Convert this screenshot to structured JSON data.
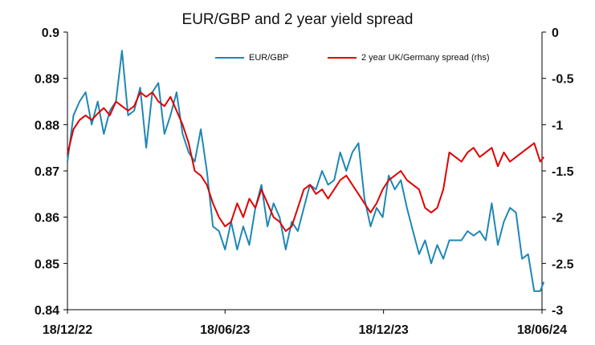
{
  "chart_data": {
    "type": "line",
    "title": "EUR/GBP and 2 year yield spread",
    "x_ticks": [
      "18/12/22",
      "18/06/23",
      "18/12/23",
      "18/06/24"
    ],
    "y_left": {
      "min": 0.84,
      "max": 0.9,
      "ticks": [
        "0.84",
        "0.85",
        "0.86",
        "0.87",
        "0.88",
        "0.89",
        "0.9"
      ]
    },
    "y_right": {
      "min": -3,
      "max": 0,
      "ticks": [
        "-3",
        "-2.5",
        "-2",
        "-1.5",
        "-1",
        "-0.5",
        "0"
      ]
    },
    "grid": false,
    "legend_placement": "top",
    "series": [
      {
        "name": "EUR/GBP",
        "axis": "left",
        "color": "#1f87b5",
        "points": [
          [
            "2022-12-18",
            0.872
          ],
          [
            "2022-12-25",
            0.882
          ],
          [
            "2023-01-01",
            0.885
          ],
          [
            "2023-01-08",
            0.887
          ],
          [
            "2023-01-15",
            0.88
          ],
          [
            "2023-01-22",
            0.885
          ],
          [
            "2023-01-29",
            0.878
          ],
          [
            "2023-02-05",
            0.883
          ],
          [
            "2023-02-12",
            0.885
          ],
          [
            "2023-02-19",
            0.896
          ],
          [
            "2023-02-26",
            0.882
          ],
          [
            "2023-03-05",
            0.883
          ],
          [
            "2023-03-12",
            0.888
          ],
          [
            "2023-03-19",
            0.875
          ],
          [
            "2023-03-26",
            0.887
          ],
          [
            "2023-04-02",
            0.889
          ],
          [
            "2023-04-09",
            0.878
          ],
          [
            "2023-04-16",
            0.882
          ],
          [
            "2023-04-23",
            0.887
          ],
          [
            "2023-04-30",
            0.878
          ],
          [
            "2023-05-07",
            0.874
          ],
          [
            "2023-05-14",
            0.872
          ],
          [
            "2023-05-21",
            0.879
          ],
          [
            "2023-05-28",
            0.87
          ],
          [
            "2023-06-04",
            0.858
          ],
          [
            "2023-06-11",
            0.857
          ],
          [
            "2023-06-18",
            0.853
          ],
          [
            "2023-06-25",
            0.859
          ],
          [
            "2023-07-02",
            0.853
          ],
          [
            "2023-07-09",
            0.858
          ],
          [
            "2023-07-16",
            0.854
          ],
          [
            "2023-07-23",
            0.862
          ],
          [
            "2023-07-30",
            0.867
          ],
          [
            "2023-08-06",
            0.858
          ],
          [
            "2023-08-13",
            0.863
          ],
          [
            "2023-08-20",
            0.86
          ],
          [
            "2023-08-27",
            0.853
          ],
          [
            "2023-09-03",
            0.859
          ],
          [
            "2023-09-10",
            0.857
          ],
          [
            "2023-09-17",
            0.862
          ],
          [
            "2023-09-24",
            0.867
          ],
          [
            "2023-10-01",
            0.866
          ],
          [
            "2023-10-08",
            0.87
          ],
          [
            "2023-10-15",
            0.867
          ],
          [
            "2023-10-22",
            0.868
          ],
          [
            "2023-10-29",
            0.874
          ],
          [
            "2023-11-05",
            0.87
          ],
          [
            "2023-11-12",
            0.874
          ],
          [
            "2023-11-19",
            0.876
          ],
          [
            "2023-11-26",
            0.864
          ],
          [
            "2023-12-03",
            0.858
          ],
          [
            "2023-12-10",
            0.862
          ],
          [
            "2023-12-17",
            0.86
          ],
          [
            "2023-12-24",
            0.869
          ],
          [
            "2023-12-31",
            0.866
          ],
          [
            "2024-01-07",
            0.868
          ],
          [
            "2024-01-14",
            0.862
          ],
          [
            "2024-01-21",
            0.857
          ],
          [
            "2024-01-28",
            0.852
          ],
          [
            "2024-02-04",
            0.855
          ],
          [
            "2024-02-11",
            0.85
          ],
          [
            "2024-02-18",
            0.854
          ],
          [
            "2024-02-25",
            0.851
          ],
          [
            "2024-03-03",
            0.855
          ],
          [
            "2024-03-10",
            0.855
          ],
          [
            "2024-03-17",
            0.855
          ],
          [
            "2024-03-24",
            0.857
          ],
          [
            "2024-03-31",
            0.856
          ],
          [
            "2024-04-07",
            0.857
          ],
          [
            "2024-04-14",
            0.855
          ],
          [
            "2024-04-21",
            0.863
          ],
          [
            "2024-04-28",
            0.854
          ],
          [
            "2024-05-05",
            0.859
          ],
          [
            "2024-05-12",
            0.862
          ],
          [
            "2024-05-19",
            0.861
          ],
          [
            "2024-05-26",
            0.851
          ],
          [
            "2024-06-02",
            0.852
          ],
          [
            "2024-06-09",
            0.844
          ],
          [
            "2024-06-16",
            0.844
          ],
          [
            "2024-06-20",
            0.846
          ]
        ]
      },
      {
        "name": "2 year UK/Germany spread (rhs)",
        "axis": "right",
        "color": "#e00000",
        "points": [
          [
            "2022-12-18",
            -1.32
          ],
          [
            "2022-12-25",
            -1.05
          ],
          [
            "2023-01-01",
            -0.95
          ],
          [
            "2023-01-08",
            -0.9
          ],
          [
            "2023-01-15",
            -0.95
          ],
          [
            "2023-01-22",
            -0.88
          ],
          [
            "2023-01-29",
            -0.82
          ],
          [
            "2023-02-05",
            -0.9
          ],
          [
            "2023-02-12",
            -0.75
          ],
          [
            "2023-02-19",
            -0.8
          ],
          [
            "2023-02-26",
            -0.85
          ],
          [
            "2023-03-05",
            -0.8
          ],
          [
            "2023-03-12",
            -0.65
          ],
          [
            "2023-03-19",
            -0.7
          ],
          [
            "2023-03-26",
            -0.65
          ],
          [
            "2023-04-02",
            -0.75
          ],
          [
            "2023-04-09",
            -0.8
          ],
          [
            "2023-04-16",
            -0.7
          ],
          [
            "2023-04-23",
            -0.85
          ],
          [
            "2023-04-30",
            -1.0
          ],
          [
            "2023-05-07",
            -1.2
          ],
          [
            "2023-05-14",
            -1.5
          ],
          [
            "2023-05-21",
            -1.55
          ],
          [
            "2023-05-28",
            -1.65
          ],
          [
            "2023-06-04",
            -1.85
          ],
          [
            "2023-06-11",
            -2.0
          ],
          [
            "2023-06-18",
            -2.1
          ],
          [
            "2023-06-25",
            -2.05
          ],
          [
            "2023-07-02",
            -1.85
          ],
          [
            "2023-07-09",
            -2.0
          ],
          [
            "2023-07-16",
            -1.8
          ],
          [
            "2023-07-23",
            -1.9
          ],
          [
            "2023-07-30",
            -1.7
          ],
          [
            "2023-08-06",
            -1.85
          ],
          [
            "2023-08-13",
            -2.0
          ],
          [
            "2023-08-20",
            -2.05
          ],
          [
            "2023-08-27",
            -2.15
          ],
          [
            "2023-09-03",
            -2.1
          ],
          [
            "2023-09-10",
            -1.9
          ],
          [
            "2023-09-17",
            -1.7
          ],
          [
            "2023-09-24",
            -1.65
          ],
          [
            "2023-10-01",
            -1.75
          ],
          [
            "2023-10-08",
            -1.7
          ],
          [
            "2023-10-15",
            -1.8
          ],
          [
            "2023-10-22",
            -1.7
          ],
          [
            "2023-10-29",
            -1.6
          ],
          [
            "2023-11-05",
            -1.55
          ],
          [
            "2023-11-12",
            -1.65
          ],
          [
            "2023-11-19",
            -1.75
          ],
          [
            "2023-11-26",
            -1.85
          ],
          [
            "2023-12-03",
            -1.95
          ],
          [
            "2023-12-10",
            -1.85
          ],
          [
            "2023-12-17",
            -1.7
          ],
          [
            "2023-12-24",
            -1.6
          ],
          [
            "2023-12-31",
            -1.55
          ],
          [
            "2024-01-07",
            -1.5
          ],
          [
            "2024-01-14",
            -1.6
          ],
          [
            "2024-01-21",
            -1.65
          ],
          [
            "2024-01-28",
            -1.7
          ],
          [
            "2024-02-04",
            -1.9
          ],
          [
            "2024-02-11",
            -1.95
          ],
          [
            "2024-02-18",
            -1.9
          ],
          [
            "2024-02-25",
            -1.7
          ],
          [
            "2024-03-03",
            -1.3
          ],
          [
            "2024-03-10",
            -1.35
          ],
          [
            "2024-03-17",
            -1.4
          ],
          [
            "2024-03-24",
            -1.3
          ],
          [
            "2024-03-31",
            -1.25
          ],
          [
            "2024-04-07",
            -1.35
          ],
          [
            "2024-04-14",
            -1.3
          ],
          [
            "2024-04-21",
            -1.25
          ],
          [
            "2024-04-28",
            -1.45
          ],
          [
            "2024-05-05",
            -1.3
          ],
          [
            "2024-05-12",
            -1.4
          ],
          [
            "2024-05-19",
            -1.35
          ],
          [
            "2024-05-26",
            -1.3
          ],
          [
            "2024-06-02",
            -1.25
          ],
          [
            "2024-06-09",
            -1.2
          ],
          [
            "2024-06-16",
            -1.4
          ],
          [
            "2024-06-20",
            -1.35
          ]
        ]
      }
    ]
  }
}
